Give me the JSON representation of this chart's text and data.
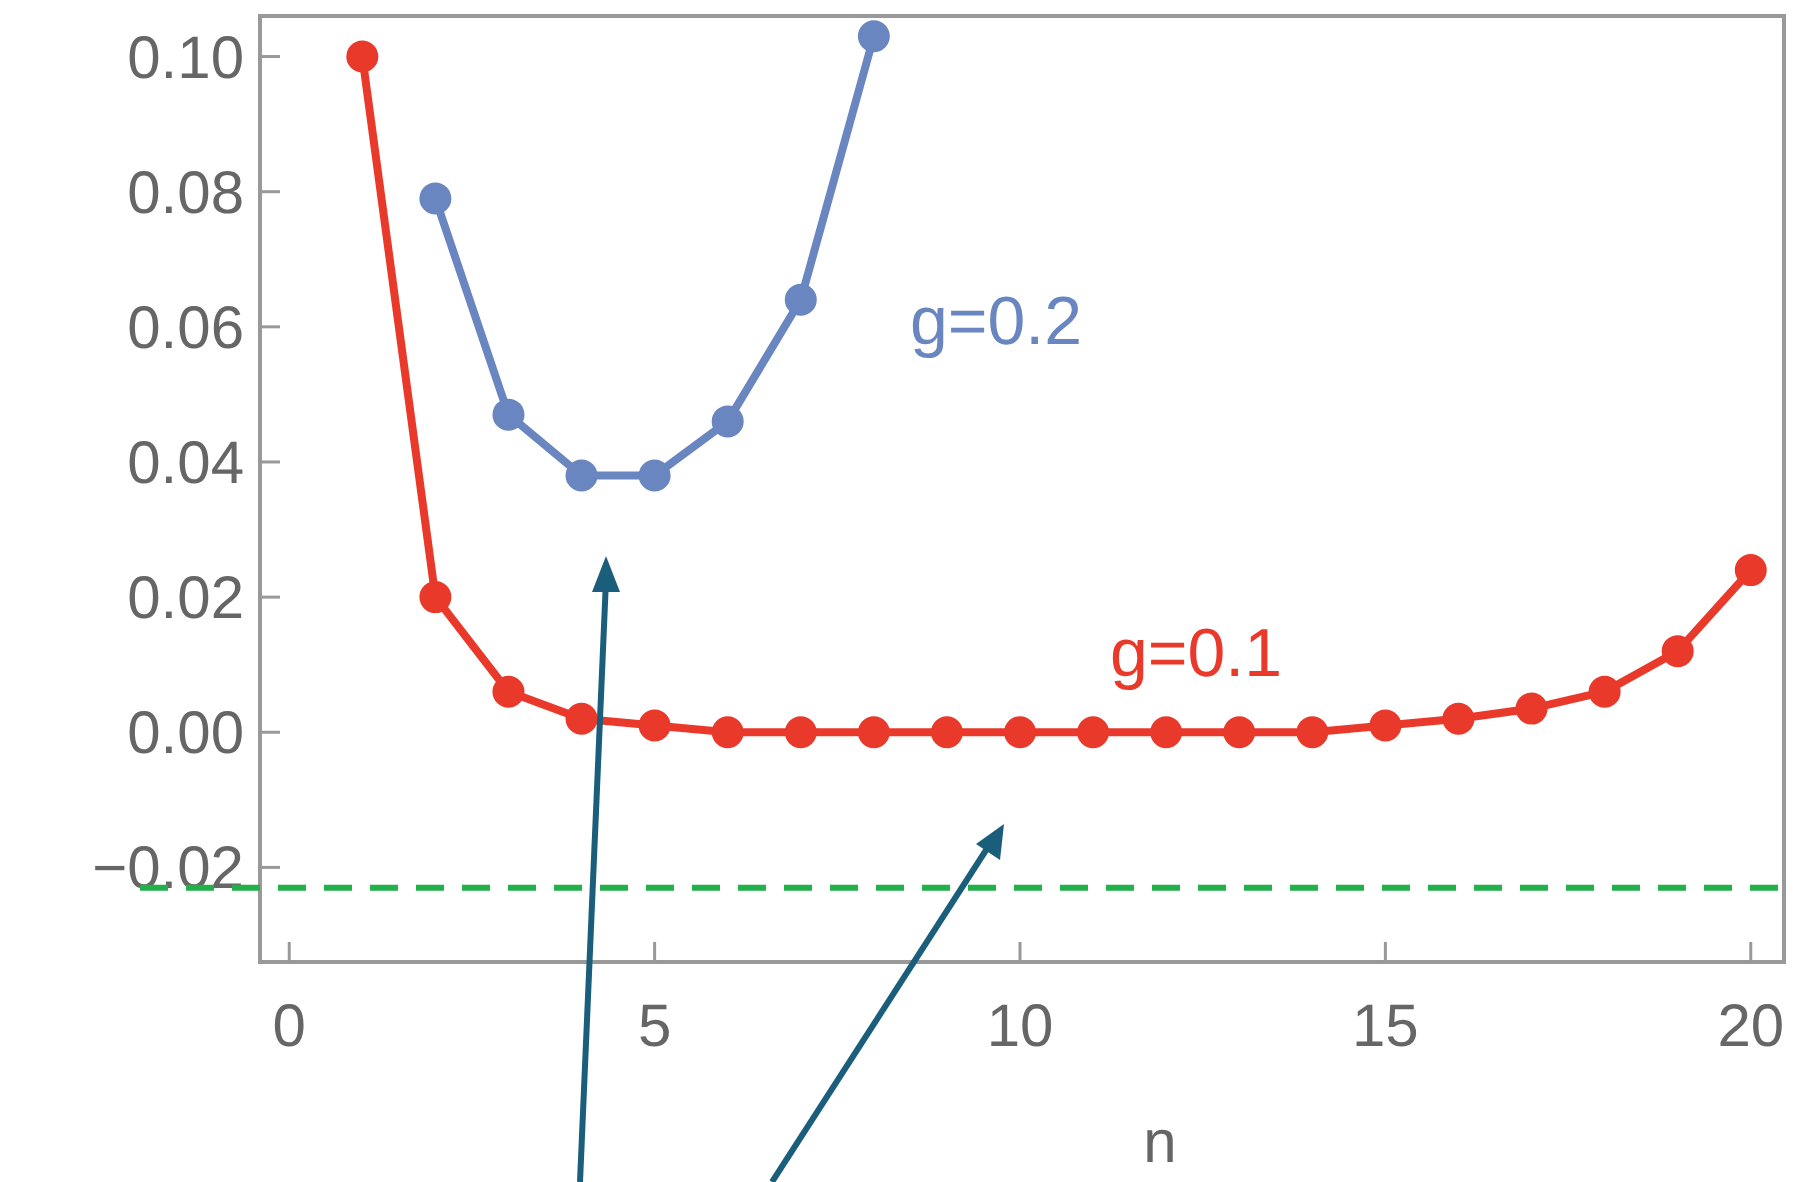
{
  "chart_data": {
    "type": "line",
    "xlabel": "n",
    "x": [
      1,
      2,
      3,
      4,
      5,
      6,
      7,
      8,
      9,
      10,
      11,
      12,
      13,
      14,
      15,
      16,
      17,
      18,
      19,
      20
    ],
    "series": [
      {
        "name": "g=0.2",
        "color": "#6a86c0",
        "x": [
          2,
          3,
          4,
          5,
          6,
          7,
          8
        ],
        "values": [
          0.079,
          0.047,
          0.038,
          0.038,
          0.046,
          0.064,
          0.103
        ]
      },
      {
        "name": "g=0.1",
        "color": "#e8392b",
        "values": [
          0.1,
          0.02,
          0.006,
          0.002,
          0.001,
          0,
          0,
          0,
          0,
          0,
          0,
          0,
          0,
          0,
          0.001,
          0.002,
          0.0035,
          0.006,
          0.012,
          0.024
        ]
      }
    ],
    "marker": "circle",
    "line_style": "solid",
    "grid": false,
    "xlim": [
      -0.4,
      20.4
    ],
    "ylim": [
      -0.034,
      0.106
    ],
    "xticks": [
      0,
      5,
      10,
      15,
      20
    ],
    "yticks": [
      {
        "value": -0.02,
        "label": "−0.02"
      },
      {
        "value": 0,
        "label": "0.00"
      },
      {
        "value": 0.02,
        "label": "0.02"
      },
      {
        "value": 0.04,
        "label": "0.04"
      },
      {
        "value": 0.06,
        "label": "0.06"
      },
      {
        "value": 0.08,
        "label": "0.08"
      },
      {
        "value": 0.1,
        "label": "0.10"
      }
    ],
    "ref_lines": [
      {
        "axis": "y",
        "value": -0.023,
        "color": "#22b04a",
        "line_style": "dashed"
      }
    ]
  }
}
